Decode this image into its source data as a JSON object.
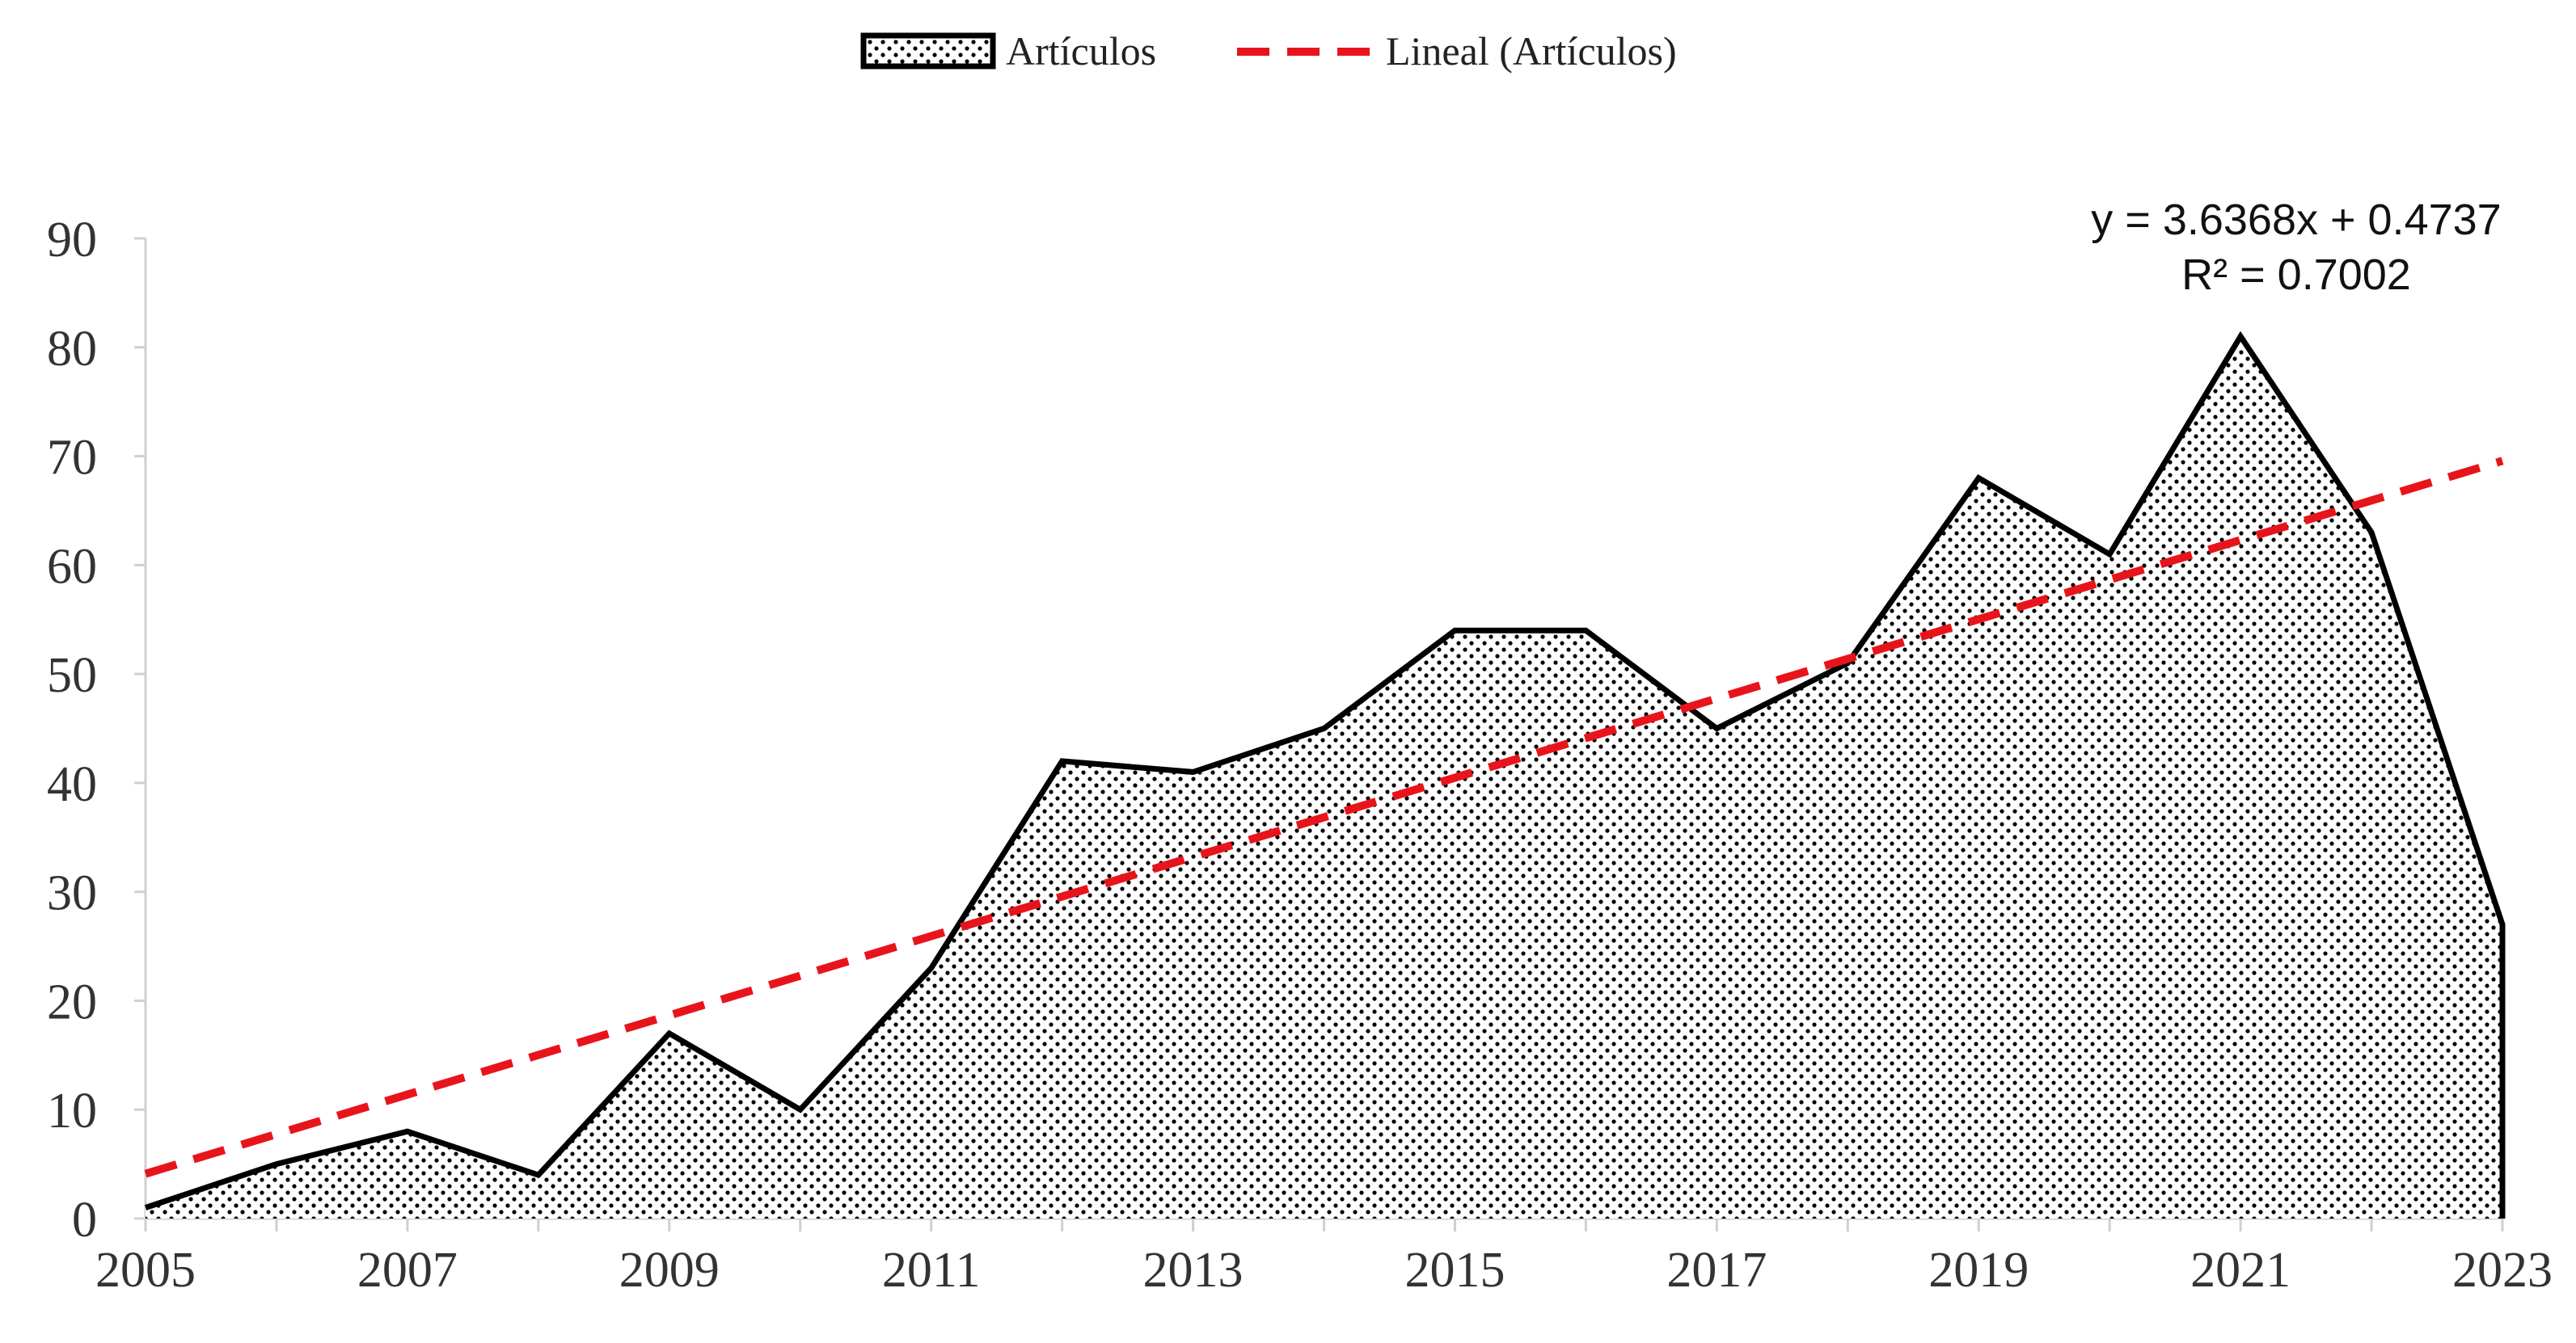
{
  "chart_data": {
    "type": "area",
    "title": "",
    "xlabel": "",
    "ylabel": "",
    "x": [
      2005,
      2006,
      2007,
      2008,
      2009,
      2010,
      2011,
      2012,
      2013,
      2014,
      2015,
      2016,
      2017,
      2018,
      2019,
      2020,
      2021,
      2022,
      2023
    ],
    "series": [
      {
        "name": "Artículos",
        "values": [
          1,
          5,
          8,
          4,
          17,
          10,
          23,
          42,
          41,
          45,
          54,
          54,
          45,
          51,
          68,
          61,
          81,
          63,
          27
        ]
      }
    ],
    "trendline": {
      "name": "Lineal (Artículos)",
      "type": "linear",
      "slope": 3.6368,
      "intercept": 0.4737,
      "equation": "y = 3.6368x + 0.4737",
      "r_squared": "R² = 0.7002"
    },
    "ylim": [
      0,
      90
    ],
    "yticks": [
      "0",
      "10",
      "20",
      "30",
      "40",
      "50",
      "60",
      "70",
      "80",
      "90"
    ],
    "xtick_labels": [
      "2005",
      "2007",
      "2009",
      "2011",
      "2013",
      "2015",
      "2017",
      "2019",
      "2021",
      "2023"
    ],
    "legend": {
      "position": "top-center",
      "entries": [
        "Artículos",
        "Lineal (Artículos)"
      ]
    },
    "colors": {
      "area_stroke": "#000000",
      "area_dots": "#000000",
      "trend": "#e8141b",
      "axis": "#d0d0d0"
    },
    "grid": false
  }
}
